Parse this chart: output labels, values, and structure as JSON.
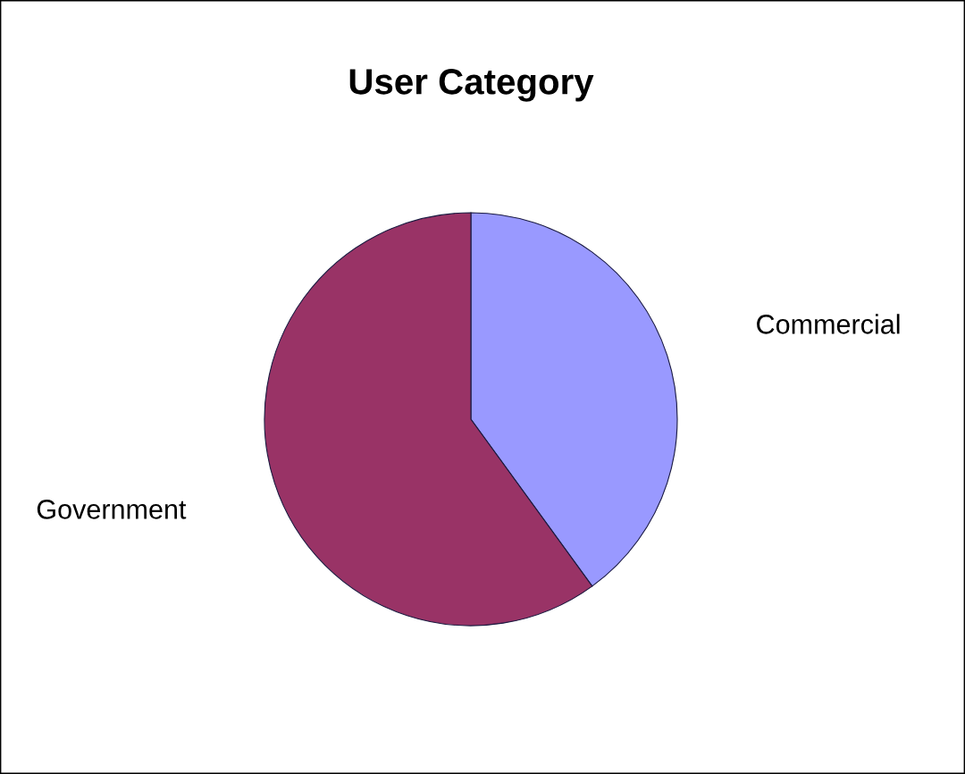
{
  "chart_data": {
    "type": "pie",
    "title": "User Category",
    "categories": [
      "Commercial",
      "Government"
    ],
    "values": [
      40,
      60
    ],
    "colors": [
      "#9999ff",
      "#993366"
    ]
  }
}
